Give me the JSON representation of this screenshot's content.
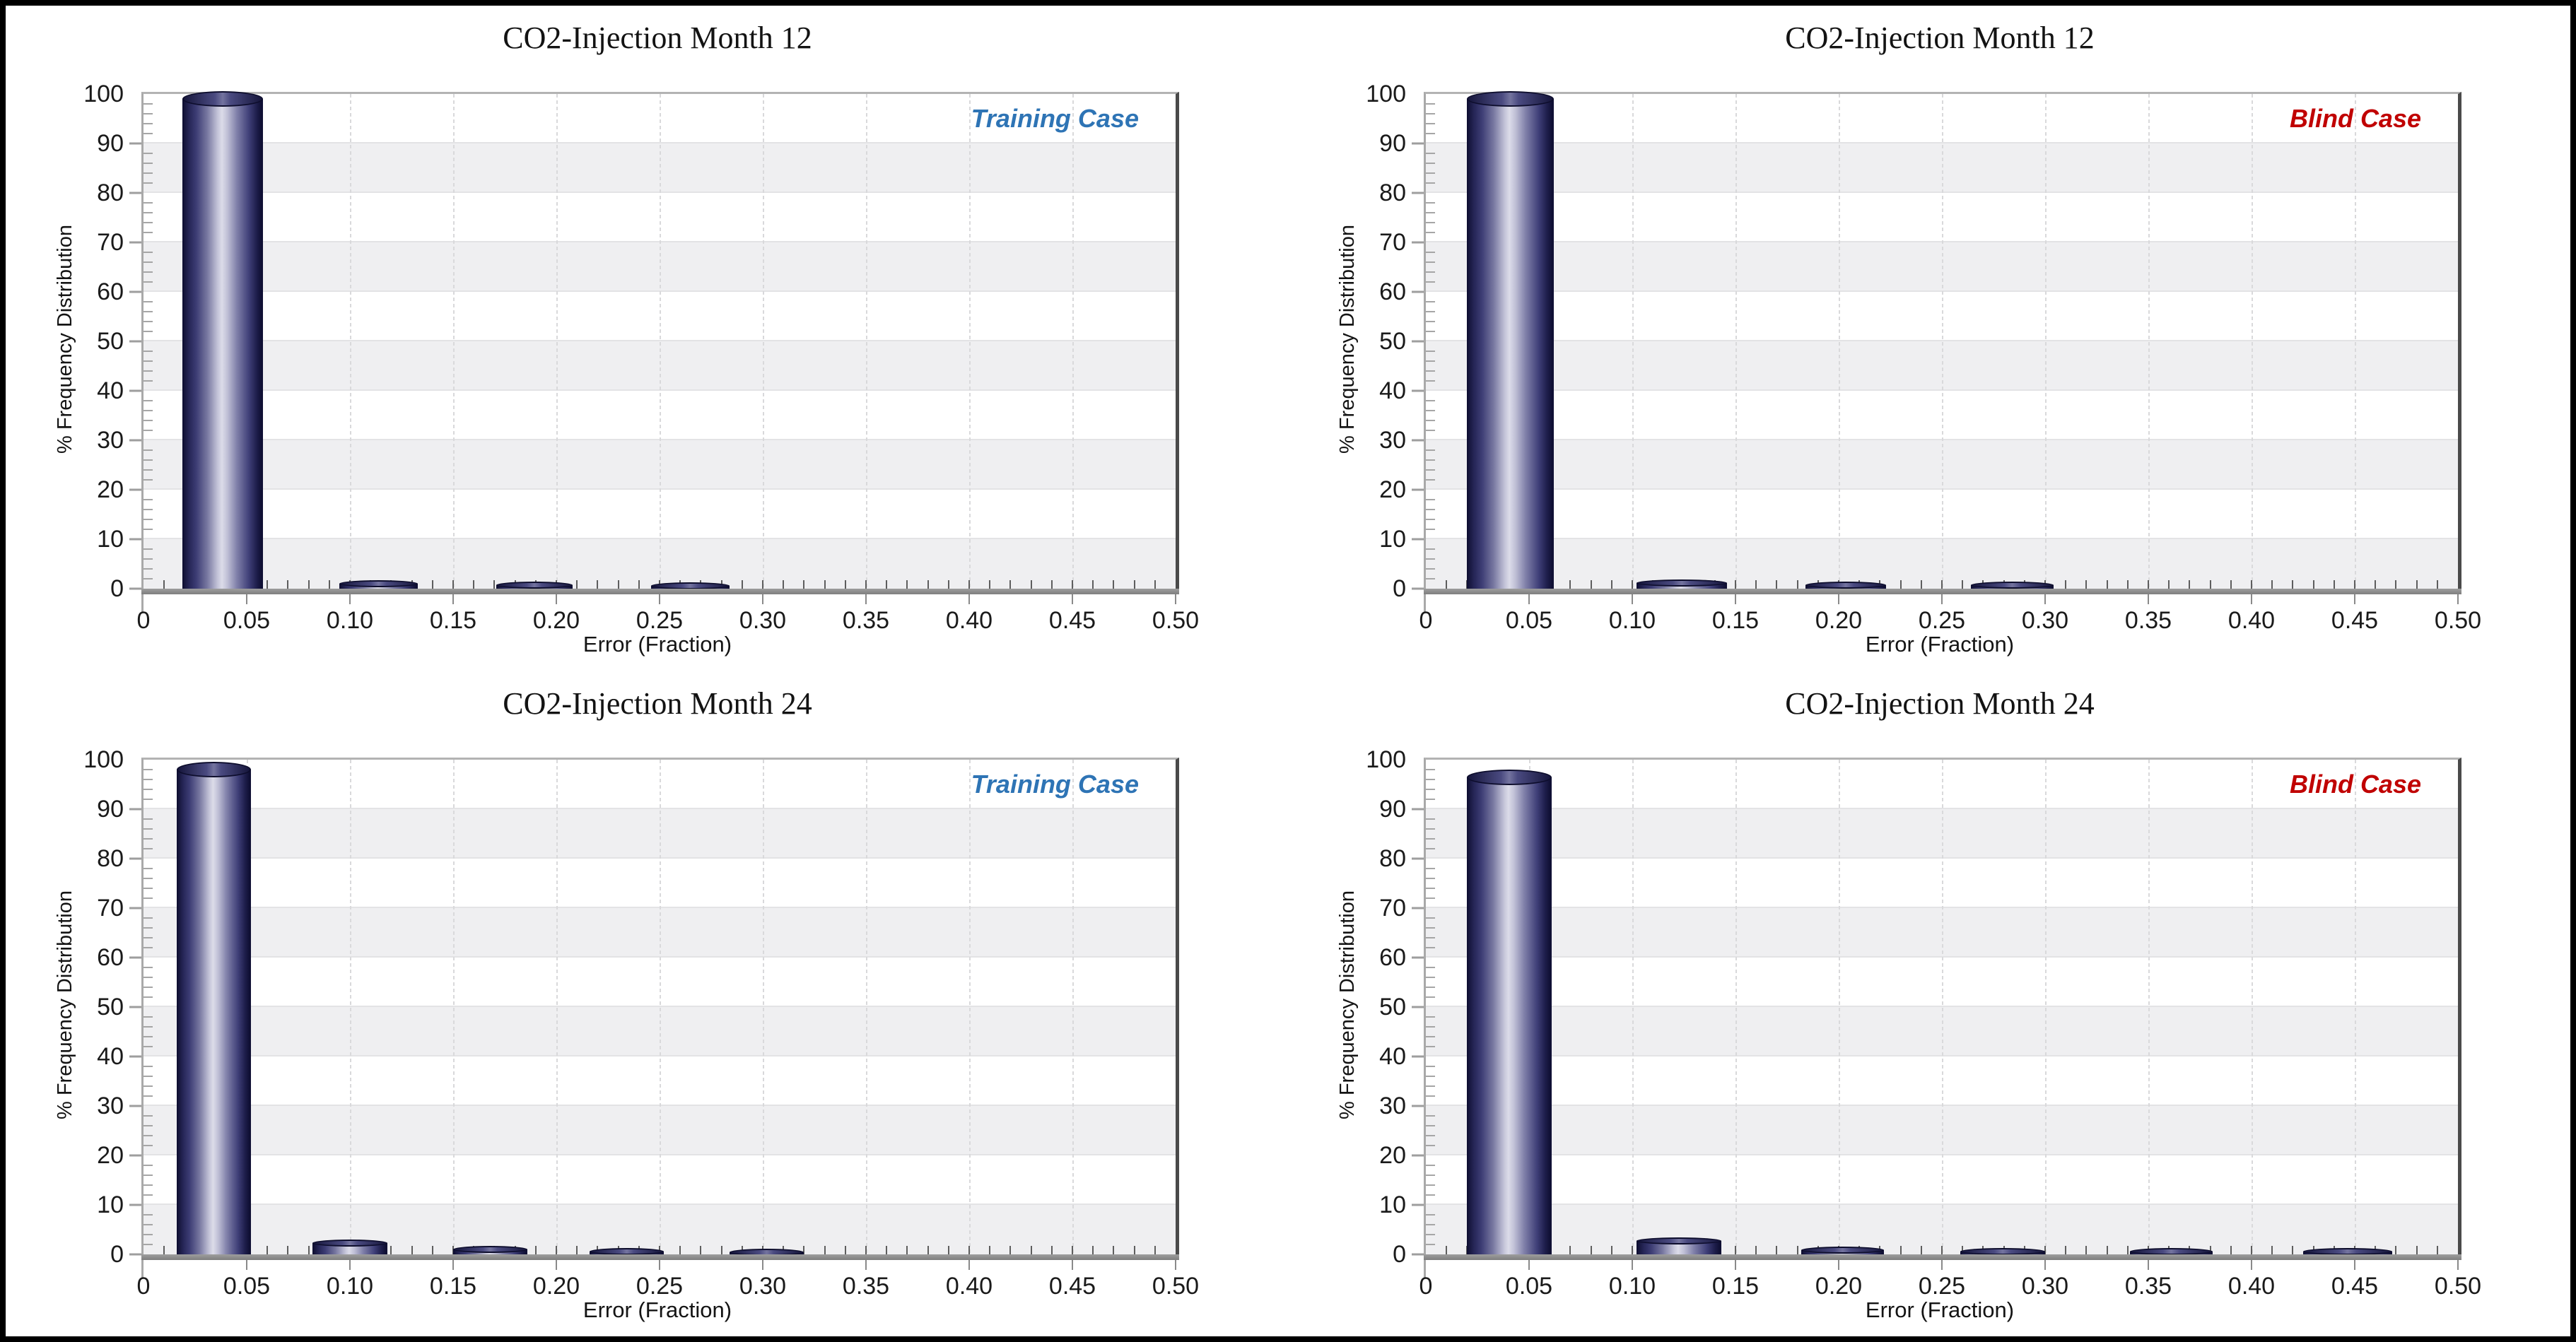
{
  "figure": {
    "border_color": "#000000",
    "background": "#ffffff",
    "colors": {
      "training_case": "#2E74B5",
      "blind_case": "#C00000",
      "bar_edge": "#131338",
      "bar_highlight": "#dcdce9",
      "plot_band": "#efeff1",
      "floor": "#8f8f8f",
      "axis": "#a9a9a9",
      "plot_right_border": "#4a4a4a",
      "title_text": "#131313"
    }
  },
  "chart_data": [
    {
      "type": "bar",
      "title": "CO2-Injection Month 12",
      "case_label": "Training Case",
      "case_color": "#2E74B5",
      "xlabel": "Error (Fraction)",
      "ylabel": "% Frequency Distribution",
      "xlim": [
        0,
        0.5
      ],
      "ylim": [
        0,
        100
      ],
      "x_tick_labels": [
        "0",
        "0.05",
        "0.10",
        "0.15",
        "0.20",
        "0.25",
        "0.30",
        "0.35",
        "0.40",
        "0.45",
        "0.50"
      ],
      "y_tick_labels": [
        "0",
        "10",
        "20",
        "30",
        "40",
        "50",
        "60",
        "70",
        "80",
        "90",
        "100"
      ],
      "x_minor_step": 0.01,
      "y_minor_step": 2,
      "grid": true,
      "bars": [
        {
          "x0": 0.019,
          "x1": 0.058,
          "value": 99
        },
        {
          "x0": 0.095,
          "x1": 0.133,
          "value": 1.0
        },
        {
          "x0": 0.171,
          "x1": 0.208,
          "value": 0.7
        },
        {
          "x0": 0.246,
          "x1": 0.284,
          "value": 0.6
        }
      ]
    },
    {
      "type": "bar",
      "title": "CO2-Injection Month 12",
      "case_label": "Blind Case",
      "case_color": "#C00000",
      "xlabel": "Error (Fraction)",
      "ylabel": "% Frequency Distribution",
      "xlim": [
        0,
        0.5
      ],
      "ylim": [
        0,
        100
      ],
      "x_tick_labels": [
        "0",
        "0.05",
        "0.10",
        "0.15",
        "0.20",
        "0.25",
        "0.30",
        "0.35",
        "0.40",
        "0.45",
        "0.50"
      ],
      "y_tick_labels": [
        "0",
        "10",
        "20",
        "30",
        "40",
        "50",
        "60",
        "70",
        "80",
        "90",
        "100"
      ],
      "x_minor_step": 0.01,
      "y_minor_step": 2,
      "grid": true,
      "bars": [
        {
          "x0": 0.02,
          "x1": 0.062,
          "value": 99
        },
        {
          "x0": 0.102,
          "x1": 0.146,
          "value": 1.2
        },
        {
          "x0": 0.184,
          "x1": 0.223,
          "value": 0.7
        },
        {
          "x0": 0.264,
          "x1": 0.304,
          "value": 0.7
        }
      ]
    },
    {
      "type": "bar",
      "title": "CO2-Injection Month 24",
      "case_label": "Training Case",
      "case_color": "#2E74B5",
      "xlabel": "Error (Fraction)",
      "ylabel": "% Frequency Distribution",
      "xlim": [
        0,
        0.5
      ],
      "ylim": [
        0,
        100
      ],
      "x_tick_labels": [
        "0",
        "0.05",
        "0.10",
        "0.15",
        "0.20",
        "0.25",
        "0.30",
        "0.35",
        "0.40",
        "0.45",
        "0.50"
      ],
      "y_tick_labels": [
        "0",
        "10",
        "20",
        "30",
        "40",
        "50",
        "60",
        "70",
        "80",
        "90",
        "100"
      ],
      "x_minor_step": 0.01,
      "y_minor_step": 2,
      "grid": true,
      "bars": [
        {
          "x0": 0.016,
          "x1": 0.052,
          "value": 98
        },
        {
          "x0": 0.082,
          "x1": 0.118,
          "value": 2.3
        },
        {
          "x0": 0.15,
          "x1": 0.186,
          "value": 1.0
        },
        {
          "x0": 0.216,
          "x1": 0.252,
          "value": 0.6
        },
        {
          "x0": 0.284,
          "x1": 0.32,
          "value": 0.5
        }
      ]
    },
    {
      "type": "bar",
      "title": "CO2-Injection Month 24",
      "case_label": "Blind Case",
      "case_color": "#C00000",
      "xlabel": "Error (Fraction)",
      "ylabel": "% Frequency Distribution",
      "xlim": [
        0,
        0.5
      ],
      "ylim": [
        0,
        100
      ],
      "x_tick_labels": [
        "0",
        "0.05",
        "0.10",
        "0.15",
        "0.20",
        "0.25",
        "0.30",
        "0.35",
        "0.40",
        "0.45",
        "0.50"
      ],
      "y_tick_labels": [
        "0",
        "10",
        "20",
        "30",
        "40",
        "50",
        "60",
        "70",
        "80",
        "90",
        "100"
      ],
      "x_minor_step": 0.01,
      "y_minor_step": 2,
      "grid": true,
      "bars": [
        {
          "x0": 0.02,
          "x1": 0.061,
          "value": 96.5
        },
        {
          "x0": 0.102,
          "x1": 0.143,
          "value": 2.7
        },
        {
          "x0": 0.182,
          "x1": 0.222,
          "value": 0.9
        },
        {
          "x0": 0.259,
          "x1": 0.3,
          "value": 0.6
        },
        {
          "x0": 0.341,
          "x1": 0.381,
          "value": 0.55
        },
        {
          "x0": 0.425,
          "x1": 0.468,
          "value": 0.55
        }
      ]
    }
  ]
}
